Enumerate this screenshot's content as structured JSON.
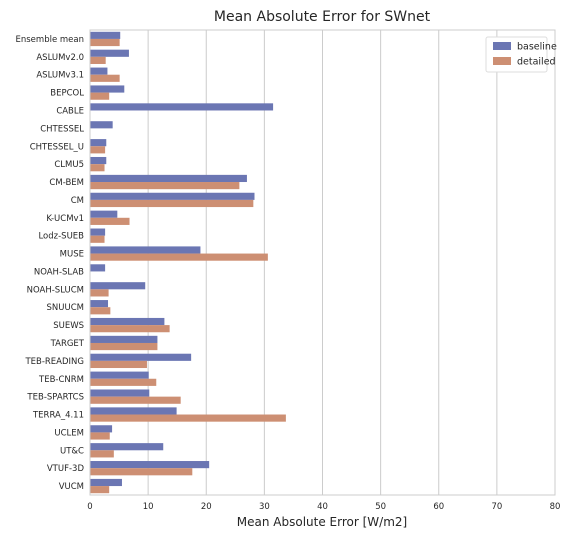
{
  "chart_data": {
    "type": "bar",
    "orientation": "horizontal",
    "title": "Mean Absolute Error for SWnet",
    "xlabel": "Mean Absolute Error [W/m2]",
    "ylabel": "",
    "xlim": [
      0,
      80
    ],
    "xticks": [
      0,
      10,
      20,
      30,
      40,
      50,
      60,
      70,
      80
    ],
    "grid": "vertical",
    "legend_position": "top-right",
    "categories": [
      "Ensemble mean",
      "ASLUMv2.0",
      "ASLUMv3.1",
      "BEPCOL",
      "CABLE",
      "CHTESSEL",
      "CHTESSEL_U",
      "CLMU5",
      "CM-BEM",
      "CM",
      "K-UCMv1",
      "Lodz-SUEB",
      "MUSE",
      "NOAH-SLAB",
      "NOAH-SLUCM",
      "SNUUCM",
      "SUEWS",
      "TARGET",
      "TEB-READING",
      "TEB-CNRM",
      "TEB-SPARTCS",
      "TERRA_4.11",
      "UCLEM",
      "UT&C",
      "VTUF-3D",
      "VUCM"
    ],
    "series": [
      {
        "name": "baseline",
        "color": "#6b76b3",
        "values": [
          5.2,
          6.7,
          3.0,
          5.9,
          31.5,
          3.9,
          2.8,
          2.8,
          27.0,
          28.3,
          4.7,
          2.6,
          19.0,
          2.6,
          9.5,
          3.1,
          12.8,
          11.6,
          17.4,
          10.1,
          10.2,
          14.9,
          3.8,
          12.6,
          20.5,
          5.5
        ]
      },
      {
        "name": "detailed",
        "color": "#cd8f73",
        "values": [
          5.1,
          2.7,
          5.1,
          3.3,
          null,
          null,
          2.6,
          2.5,
          25.7,
          28.1,
          6.8,
          2.5,
          30.6,
          null,
          3.2,
          3.5,
          13.7,
          11.6,
          9.8,
          11.4,
          15.6,
          33.7,
          3.4,
          4.1,
          17.6,
          3.3
        ]
      }
    ]
  }
}
